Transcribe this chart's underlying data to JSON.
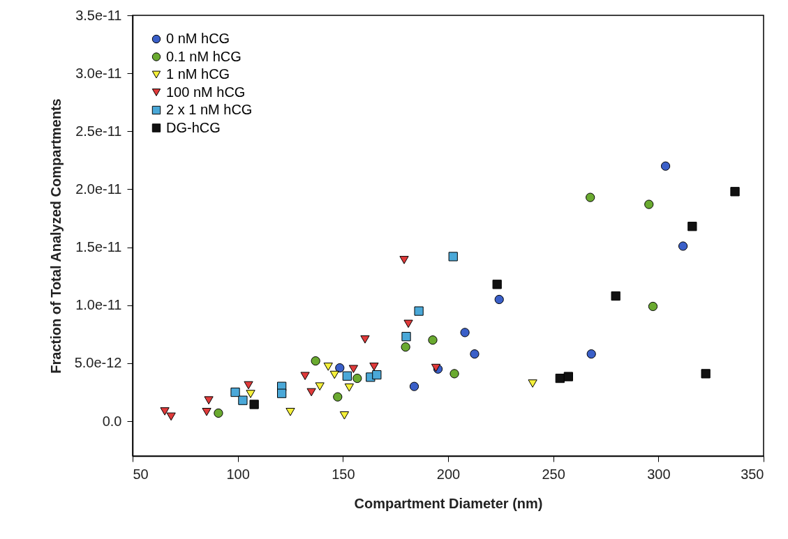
{
  "chart_data": {
    "type": "scatter",
    "xlabel": "Compartment Diameter (nm)",
    "ylabel": "Fraction of Total Analyzed Compartments",
    "xlim": [
      50,
      350
    ],
    "xticks": [
      50,
      100,
      150,
      200,
      250,
      300,
      350
    ],
    "ylim": [
      -3e-12,
      3.5e-11
    ],
    "yticks": [
      {
        "value": 0,
        "label": "0.0"
      },
      {
        "value": 5e-12,
        "label": "5.0e-12"
      },
      {
        "value": 1e-11,
        "label": "1.0e-11"
      },
      {
        "value": 1.5e-11,
        "label": "1.5e-11"
      },
      {
        "value": 2e-11,
        "label": "2.0e-11"
      },
      {
        "value": 2.5e-11,
        "label": "2.5e-11"
      },
      {
        "value": 3e-11,
        "label": "3.0e-11"
      },
      {
        "value": 3.5e-11,
        "label": "3.5e-11"
      }
    ],
    "grid": false,
    "legend": "top left",
    "series": [
      {
        "name": "0 nM hCG",
        "color": "#3a5fc8",
        "marker": "circle",
        "x": [
          148.5,
          183.9,
          195.2,
          208,
          212.6,
          224.3,
          268.1,
          303.4,
          311.7
        ],
        "values": [
          4.6e-12,
          3e-12,
          4.5e-12,
          7.65e-12,
          5.8e-12,
          1.05e-11,
          5.8e-12,
          2.2e-11,
          1.51e-11
        ]
      },
      {
        "name": "0.1 nM hCG",
        "color": "#6aaa30",
        "marker": "circle",
        "x": [
          90.8,
          137,
          147.5,
          156.8,
          179.8,
          192.7,
          203,
          267.6,
          295.5,
          297.4
        ],
        "values": [
          7e-13,
          5.2e-12,
          2.1e-12,
          3.7e-12,
          6.4e-12,
          7e-12,
          4.1e-12,
          1.93e-11,
          1.87e-11,
          9.9e-12
        ]
      },
      {
        "name": "1 nM hCG",
        "color": "#f5f03a",
        "marker": "triangle",
        "x": [
          106.1,
          125,
          139,
          143,
          146,
          150.7,
          153,
          240.2
        ],
        "values": [
          2.35e-12,
          8e-13,
          3e-12,
          4.7e-12,
          4e-12,
          5e-13,
          2.9e-12,
          3.25e-12
        ]
      },
      {
        "name": "100 nM hCG",
        "color": "#e03a3a",
        "marker": "triangle",
        "x": [
          65.3,
          68.3,
          85.2,
          86.2,
          105.1,
          132,
          135,
          155,
          160.5,
          164.8,
          179.1,
          181.1,
          194.2
        ],
        "values": [
          8.5e-13,
          4e-13,
          8e-13,
          1.8e-12,
          3.1e-12,
          3.9e-12,
          2.5e-12,
          4.5e-12,
          7.05e-12,
          4.7e-12,
          1.39e-11,
          8.4e-12,
          4.6e-12
        ]
      },
      {
        "name": "2 x 1 nM hCG",
        "color": "#4aa8d8",
        "marker": "square",
        "x": [
          98.8,
          102.4,
          120.9,
          120.9,
          152,
          163.1,
          166.1,
          180.1,
          186.1,
          202.4
        ],
        "values": [
          2.5e-12,
          1.8e-12,
          3e-12,
          2.4e-12,
          3.9e-12,
          3.8e-12,
          4e-12,
          7.3e-12,
          9.5e-12,
          1.42e-11
        ]
      },
      {
        "name": "DG-hCG",
        "color": "#111111",
        "marker": "square",
        "x": [
          107.8,
          223.3,
          253.2,
          257.2,
          279.7,
          316.1,
          322.5,
          336.4
        ],
        "values": [
          1.45e-12,
          1.18e-11,
          3.7e-12,
          3.85e-12,
          1.08e-11,
          1.68e-11,
          4.1e-12,
          1.98e-11
        ]
      }
    ]
  }
}
